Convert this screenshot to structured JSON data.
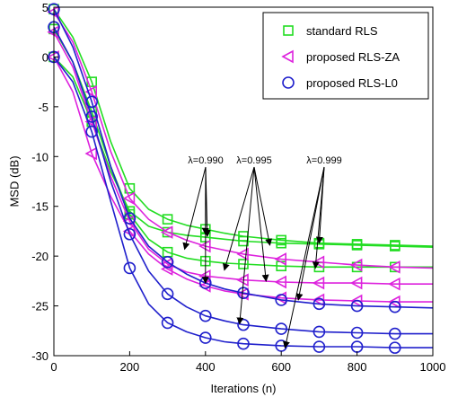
{
  "chart_data": {
    "type": "line",
    "title": "",
    "xlabel": "Iterations (n)",
    "ylabel": "MSD (dB)",
    "xlim": [
      0,
      1000
    ],
    "ylim": [
      -30,
      5
    ],
    "xticks": [
      0,
      200,
      400,
      600,
      800,
      1000
    ],
    "yticks": [
      5,
      0,
      -5,
      -10,
      -15,
      -20,
      -25,
      -30
    ],
    "legend": {
      "position": "top-right",
      "entries": [
        {
          "label": "standard RLS",
          "marker": "square",
          "color": "#22dd22"
        },
        {
          "label": "proposed RLS-ZA",
          "marker": "triangle-left",
          "color": "#dd22dd"
        },
        {
          "label": "proposed RLS-L0",
          "marker": "circle",
          "color": "#2020cc"
        }
      ]
    },
    "marker_x": [
      0,
      100,
      200,
      300,
      400,
      500,
      600,
      700,
      800,
      900
    ],
    "series": [
      {
        "method": "standard RLS",
        "lambda": "0.990",
        "color": "#22dd22",
        "marker": "square",
        "x": [
          0,
          50,
          100,
          150,
          200,
          250,
          300,
          350,
          400,
          450,
          500,
          600,
          700,
          800,
          900,
          1000
        ],
        "y": [
          4.8,
          2,
          -2.5,
          -8.5,
          -13.2,
          -15.3,
          -16.3,
          -16.9,
          -17.3,
          -17.7,
          -18.0,
          -18.4,
          -18.7,
          -18.8,
          -18.9,
          -19.0
        ]
      },
      {
        "method": "standard RLS",
        "lambda": "0.995",
        "color": "#22dd22",
        "marker": "square",
        "x": [
          0,
          50,
          100,
          150,
          200,
          250,
          300,
          350,
          400,
          450,
          500,
          600,
          700,
          800,
          900,
          1000
        ],
        "y": [
          2.8,
          -0.5,
          -5.5,
          -11,
          -15.8,
          -18.3,
          -19.6,
          -20.2,
          -20.5,
          -20.7,
          -20.8,
          -21.0,
          -21.1,
          -21.1,
          -21.1,
          -21.1
        ]
      },
      {
        "method": "standard RLS",
        "lambda": "0.999",
        "color": "#22dd22",
        "marker": "square",
        "x": [
          0,
          50,
          100,
          150,
          200,
          250,
          300,
          350,
          400,
          450,
          500,
          600,
          700,
          800,
          900,
          1000
        ],
        "y": [
          0,
          -2,
          -6.5,
          -11.5,
          -15.5,
          -17.0,
          -17.6,
          -17.9,
          -18.1,
          -18.3,
          -18.5,
          -18.7,
          -18.8,
          -18.9,
          -19.0,
          -19.1
        ]
      },
      {
        "method": "proposed RLS-ZA",
        "lambda": "0.990",
        "color": "#dd22dd",
        "marker": "triangle-left",
        "x": [
          0,
          50,
          100,
          150,
          200,
          250,
          300,
          350,
          400,
          450,
          500,
          600,
          700,
          800,
          900,
          1000
        ],
        "y": [
          4.5,
          1.5,
          -3.5,
          -9.5,
          -14.2,
          -16.3,
          -17.6,
          -18.4,
          -19.0,
          -19.4,
          -19.8,
          -20.3,
          -20.6,
          -20.9,
          -21.1,
          -21.2
        ]
      },
      {
        "method": "proposed RLS-ZA",
        "lambda": "0.995",
        "color": "#dd22dd",
        "marker": "triangle-left",
        "x": [
          0,
          50,
          100,
          150,
          200,
          250,
          300,
          350,
          400,
          450,
          500,
          600,
          700,
          800,
          900,
          1000
        ],
        "y": [
          2.5,
          -1,
          -6.5,
          -12,
          -16.5,
          -19.3,
          -20.8,
          -21.6,
          -22.0,
          -22.2,
          -22.4,
          -22.6,
          -22.7,
          -22.7,
          -22.8,
          -22.8
        ]
      },
      {
        "method": "proposed RLS-ZA",
        "lambda": "0.999",
        "color": "#dd22dd",
        "marker": "triangle-left",
        "x": [
          0,
          50,
          100,
          150,
          200,
          250,
          300,
          350,
          400,
          450,
          500,
          600,
          700,
          800,
          900,
          1000
        ],
        "y": [
          0,
          -3.5,
          -9.7,
          -14,
          -17.5,
          -19.8,
          -21.3,
          -22.3,
          -23.0,
          -23.5,
          -23.8,
          -24.2,
          -24.4,
          -24.5,
          -24.6,
          -24.6
        ]
      },
      {
        "method": "proposed RLS-L0",
        "lambda": "0.990",
        "color": "#2020cc",
        "marker": "circle",
        "x": [
          0,
          50,
          100,
          150,
          200,
          250,
          300,
          350,
          400,
          450,
          500,
          600,
          700,
          800,
          900,
          1000
        ],
        "y": [
          4.8,
          1,
          -4.5,
          -11,
          -16.2,
          -19.0,
          -20.6,
          -21.8,
          -22.7,
          -23.3,
          -23.7,
          -24.4,
          -24.8,
          -25.0,
          -25.1,
          -25.2
        ]
      },
      {
        "method": "proposed RLS-L0",
        "lambda": "0.995",
        "color": "#2020cc",
        "marker": "circle",
        "x": [
          0,
          50,
          100,
          150,
          200,
          250,
          300,
          350,
          400,
          450,
          500,
          600,
          700,
          800,
          900,
          1000
        ],
        "y": [
          3,
          -0.5,
          -6,
          -12.5,
          -17.8,
          -21.5,
          -23.8,
          -25.1,
          -26.0,
          -26.5,
          -26.9,
          -27.3,
          -27.6,
          -27.7,
          -27.8,
          -27.8
        ]
      },
      {
        "method": "proposed RLS-L0",
        "lambda": "0.999",
        "color": "#2020cc",
        "marker": "circle",
        "x": [
          0,
          50,
          100,
          150,
          200,
          250,
          300,
          350,
          400,
          450,
          500,
          600,
          700,
          800,
          900,
          1000
        ],
        "y": [
          0,
          -2.5,
          -7.5,
          -14.5,
          -21.2,
          -24.8,
          -26.7,
          -27.6,
          -28.2,
          -28.6,
          -28.8,
          -29.0,
          -29.1,
          -29.1,
          -29.2,
          -29.2
        ]
      }
    ],
    "annotations": [
      {
        "text": "λ=0.990",
        "arrow_targets": [
          [
            345,
            -19.3
          ],
          [
            400,
            -17.8
          ],
          [
            400,
            -22.7
          ],
          [
            405,
            -18.0
          ]
        ]
      },
      {
        "text": "λ=0.995",
        "arrow_targets": [
          [
            450,
            -21.4
          ],
          [
            490,
            -26.8
          ],
          [
            560,
            -22.5
          ],
          [
            570,
            -18.9
          ]
        ]
      },
      {
        "text": "λ=0.999",
        "arrow_targets": [
          [
            610,
            -29.2
          ],
          [
            645,
            -24.4
          ],
          [
            690,
            -21.2
          ],
          [
            700,
            -18.7
          ]
        ]
      }
    ],
    "grid": false
  }
}
